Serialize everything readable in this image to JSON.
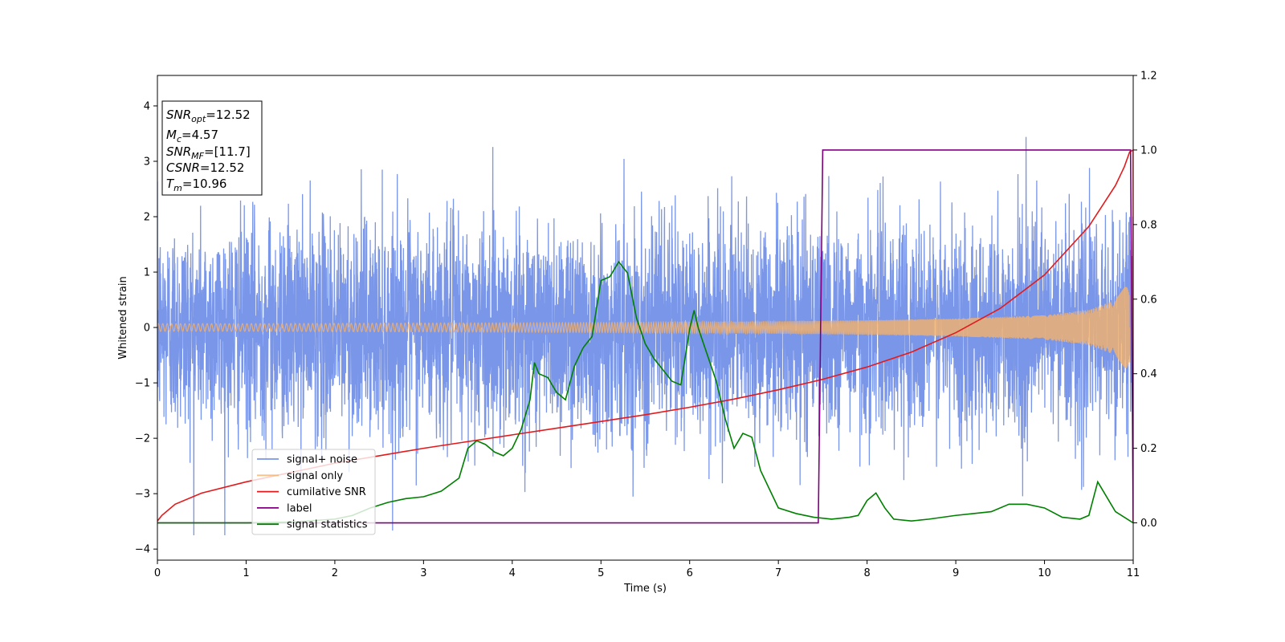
{
  "chart_data": {
    "type": "line",
    "xlabel": "Time (s)",
    "ylabel": "Whitened strain",
    "xlim": [
      0,
      11
    ],
    "ylim_left": [
      -4.2,
      4.55
    ],
    "ylim_right": [
      -0.1,
      1.2
    ],
    "x_ticks": [
      0,
      1,
      2,
      3,
      4,
      5,
      6,
      7,
      8,
      9,
      10,
      11
    ],
    "y_left_ticks": [
      -4,
      -3,
      -2,
      -1,
      0,
      1,
      2,
      3,
      4
    ],
    "y_left_tick_labels": [
      "−4",
      "−3",
      "−2",
      "−1",
      "0",
      "1",
      "2",
      "3",
      "4"
    ],
    "y_right_ticks": [
      0.0,
      0.2,
      0.4,
      0.6,
      0.8,
      1.0,
      1.2
    ],
    "y_right_tick_labels": [
      "0.0",
      "0.2",
      "0.4",
      "0.6",
      "0.8",
      "1.0",
      "1.2"
    ],
    "annotation": [
      {
        "base": "SNR",
        "sub": "opt",
        "rest": "=12.52"
      },
      {
        "base": "M",
        "sub": "c",
        "rest": "=4.57"
      },
      {
        "base": "SNR",
        "sub": "MF",
        "rest": "=[11.7]"
      },
      {
        "base": "CSNR",
        "sub": "",
        "rest": "=12.52"
      },
      {
        "base": "T",
        "sub": "m",
        "rest": "=10.96"
      }
    ],
    "legend_position": "lower-left",
    "series": [
      {
        "name": "signal+ noise",
        "axis": "left",
        "color": "#7a96e8",
        "description_values": {
          "envelope_typical": 1.6,
          "peak_max": 4.15,
          "peak_min": -3.75
        }
      },
      {
        "name": "signal only",
        "axis": "left",
        "color": "#f5b26b",
        "envelope": {
          "x": [
            0,
            1,
            2,
            3,
            4,
            5,
            6,
            7,
            8,
            9,
            10,
            10.5,
            10.8,
            10.96
          ],
          "amplitude": [
            0.07,
            0.07,
            0.075,
            0.08,
            0.085,
            0.09,
            0.1,
            0.11,
            0.13,
            0.16,
            0.22,
            0.32,
            0.5,
            0.85
          ]
        }
      },
      {
        "name": "cumilative SNR",
        "axis": "right",
        "color": "#e31a1c",
        "x": [
          0,
          0.05,
          0.2,
          0.5,
          1,
          1.5,
          2,
          2.5,
          3,
          3.5,
          4,
          4.5,
          5,
          5.5,
          6,
          6.5,
          7,
          7.5,
          8,
          8.5,
          9,
          9.5,
          10,
          10.5,
          10.8,
          10.9,
          10.96,
          11,
          11
        ],
        "y": [
          0.005,
          0.02,
          0.05,
          0.08,
          0.11,
          0.135,
          0.16,
          0.18,
          0.2,
          0.218,
          0.236,
          0.254,
          0.272,
          0.29,
          0.31,
          0.332,
          0.357,
          0.385,
          0.418,
          0.458,
          0.51,
          0.575,
          0.665,
          0.795,
          0.905,
          0.955,
          0.995,
          1.0,
          0.0
        ]
      },
      {
        "name": "label",
        "axis": "right",
        "color": "#800080",
        "x": [
          0,
          7.45,
          7.5,
          10.97,
          11.0
        ],
        "y": [
          0.0,
          0.0,
          1.0,
          1.0,
          0.0
        ]
      },
      {
        "name": "signal statistics",
        "axis": "right",
        "color": "#008000",
        "x": [
          0,
          0.5,
          1,
          1.5,
          2,
          2.2,
          2.4,
          2.6,
          2.8,
          3.0,
          3.2,
          3.4,
          3.5,
          3.6,
          3.7,
          3.8,
          3.9,
          4.0,
          4.1,
          4.2,
          4.25,
          4.3,
          4.4,
          4.5,
          4.6,
          4.7,
          4.8,
          4.9,
          5.0,
          5.1,
          5.2,
          5.3,
          5.4,
          5.5,
          5.6,
          5.7,
          5.8,
          5.9,
          6.0,
          6.05,
          6.1,
          6.2,
          6.3,
          6.4,
          6.5,
          6.6,
          6.7,
          6.8,
          6.9,
          7.0,
          7.2,
          7.4,
          7.6,
          7.8,
          7.9,
          8.0,
          8.1,
          8.2,
          8.3,
          8.5,
          8.7,
          9.0,
          9.2,
          9.4,
          9.6,
          9.8,
          10.0,
          10.2,
          10.4,
          10.5,
          10.6,
          10.8,
          11.0
        ],
        "y": [
          0.0,
          0.0,
          0.0,
          0.002,
          0.01,
          0.02,
          0.04,
          0.055,
          0.065,
          0.07,
          0.085,
          0.12,
          0.2,
          0.22,
          0.21,
          0.19,
          0.18,
          0.2,
          0.25,
          0.33,
          0.43,
          0.4,
          0.39,
          0.35,
          0.33,
          0.42,
          0.47,
          0.5,
          0.65,
          0.66,
          0.7,
          0.67,
          0.55,
          0.48,
          0.44,
          0.41,
          0.38,
          0.37,
          0.52,
          0.57,
          0.52,
          0.45,
          0.38,
          0.28,
          0.2,
          0.24,
          0.23,
          0.14,
          0.09,
          0.04,
          0.025,
          0.015,
          0.01,
          0.015,
          0.02,
          0.06,
          0.08,
          0.04,
          0.01,
          0.005,
          0.01,
          0.02,
          0.025,
          0.03,
          0.05,
          0.05,
          0.04,
          0.015,
          0.01,
          0.02,
          0.11,
          0.03,
          0.0
        ]
      }
    ]
  }
}
